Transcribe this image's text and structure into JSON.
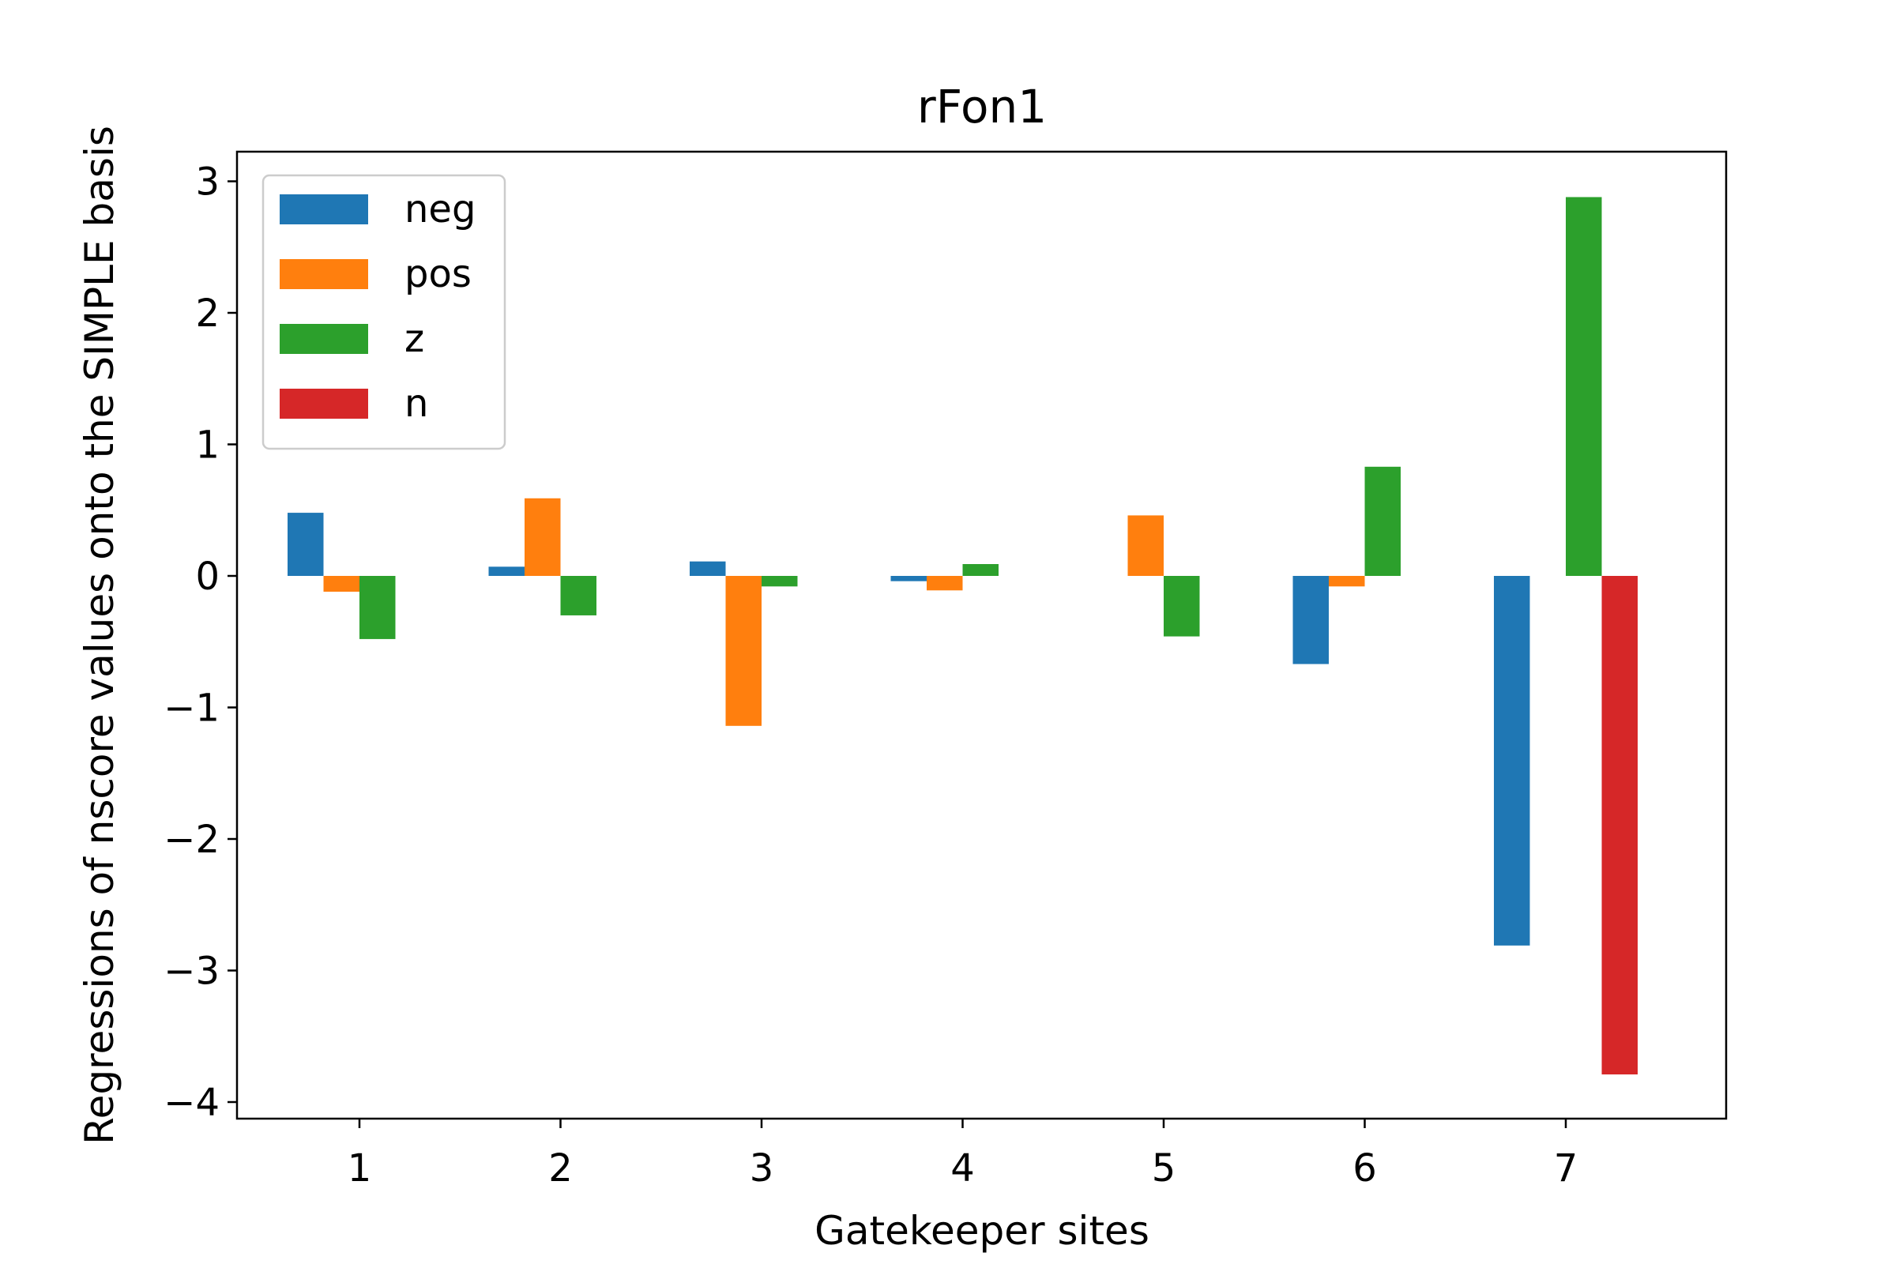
{
  "chart_data": {
    "type": "bar",
    "title": "rFon1",
    "xlabel": "Gatekeeper sites",
    "ylabel": "Regressions of nscore values onto the SIMPLE basis",
    "categories": [
      "1",
      "2",
      "3",
      "4",
      "5",
      "6",
      "7"
    ],
    "yticks": [
      3,
      2,
      1,
      0,
      -1,
      -2,
      -3,
      -4
    ],
    "ytick_labels": [
      "3",
      "2",
      "1",
      "0",
      "−1",
      "−2",
      "−3",
      "−4"
    ],
    "ylim": [
      -4.1,
      3.0
    ],
    "grid": false,
    "legend_position": "upper-left",
    "series": [
      {
        "name": "neg",
        "color": "#1f77b4",
        "values": [
          0.48,
          0.07,
          0.11,
          -0.04,
          0.0,
          -0.67,
          -2.81
        ]
      },
      {
        "name": "pos",
        "color": "#ff7f0e",
        "values": [
          -0.12,
          0.59,
          -1.14,
          -0.11,
          0.46,
          -0.08,
          0.0
        ]
      },
      {
        "name": "z",
        "color": "#2ca02c",
        "values": [
          -0.48,
          -0.3,
          -0.08,
          0.09,
          -0.46,
          0.83,
          2.88
        ]
      },
      {
        "name": "n",
        "color": "#d62728",
        "values": [
          0.0,
          0.0,
          0.0,
          0.0,
          0.0,
          0.0,
          -3.79
        ]
      }
    ]
  }
}
